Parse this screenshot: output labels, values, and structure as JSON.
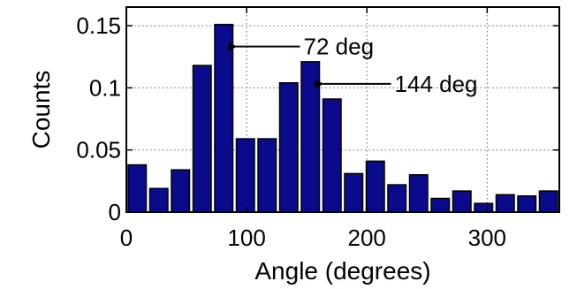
{
  "chart_data": {
    "type": "bar",
    "xlabel": "Angle (degrees)",
    "ylabel": "Counts",
    "xlim": [
      0,
      360
    ],
    "ylim": [
      0,
      0.165
    ],
    "bin_width": 18,
    "x": [
      9,
      27,
      45,
      63,
      81,
      99,
      117,
      135,
      153,
      171,
      189,
      207,
      225,
      243,
      261,
      279,
      297,
      315,
      333,
      351
    ],
    "values": [
      0.038,
      0.019,
      0.034,
      0.118,
      0.151,
      0.059,
      0.059,
      0.104,
      0.121,
      0.091,
      0.031,
      0.041,
      0.022,
      0.03,
      0.011,
      0.017,
      0.007,
      0.014,
      0.013,
      0.017
    ],
    "xticks": [
      0,
      100,
      200,
      300
    ],
    "xtick_labels": [
      "0",
      "100",
      "200",
      "300"
    ],
    "yticks": [
      0,
      0.05,
      0.1,
      0.15
    ],
    "ytick_labels": [
      "0",
      "0.05",
      "0.1",
      "0.15"
    ],
    "grid": true,
    "annotations": [
      {
        "text": "72 deg",
        "x": 81,
        "y": 0.151
      },
      {
        "text": "144 deg",
        "x": 153,
        "y": 0.121
      }
    ]
  }
}
